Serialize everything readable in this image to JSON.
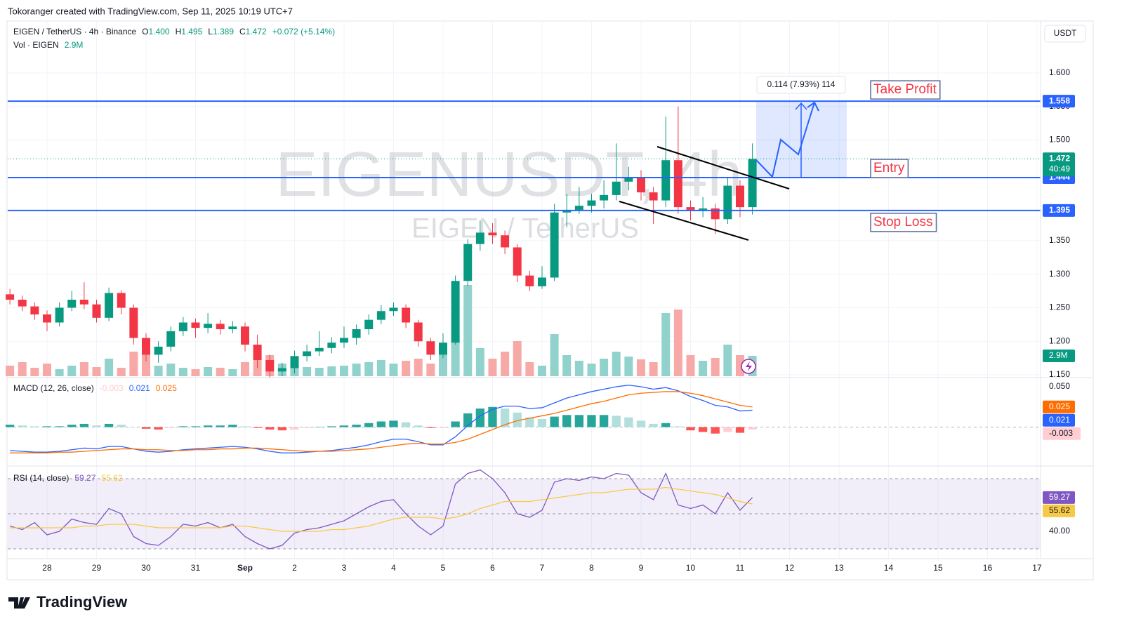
{
  "header": {
    "credit": "Tokoranger created with TradingView.com, Sep 11, 2025 10:19 UTC+7",
    "currency_button": "USDT",
    "logo": "TradingView"
  },
  "chart_data": [
    {
      "type": "candlestick",
      "symbol": "EIGEN / TetherUS · 4h · Binance",
      "ohlc_legend": [
        {
          "label": "O",
          "value": "1.400"
        },
        {
          "label": "H",
          "value": "1.495"
        },
        {
          "label": "L",
          "value": "1.389"
        },
        {
          "label": "C",
          "value": "1.472"
        }
      ],
      "change": "+0.072 (+5.14%)",
      "volume_title": "Vol · EIGEN",
      "volume_label": "2.9M",
      "watermark": "EIGENUSDT, 4h",
      "watermark_sub": "EIGEN / TetherUS",
      "countdown": "40:49",
      "categories": [
        null,
        null,
        null,
        "28",
        null,
        null,
        null,
        "29",
        null,
        null,
        null,
        "30",
        null,
        null,
        null,
        "31",
        null,
        null,
        null,
        "Sep",
        null,
        null,
        null,
        "2",
        null,
        null,
        null,
        "3",
        null,
        null,
        null,
        "4",
        null,
        null,
        null,
        "5",
        null,
        null,
        null,
        "6",
        null,
        null,
        null,
        "7",
        null,
        null,
        null,
        "8",
        null,
        null,
        null,
        "9",
        null,
        null,
        null,
        "10",
        null,
        null,
        null,
        "11",
        null
      ],
      "future_xticks": [
        "12",
        "13",
        "14",
        "15",
        "16",
        "17"
      ],
      "open": [
        1.27,
        1.262,
        1.252,
        1.24,
        1.228,
        1.25,
        1.262,
        1.255,
        1.235,
        1.272,
        1.25,
        1.205,
        1.18,
        1.192,
        1.215,
        1.228,
        1.22,
        1.226,
        1.218,
        1.222,
        1.195,
        1.172,
        1.155,
        1.16,
        1.178,
        1.185,
        1.19,
        1.198,
        1.205,
        1.218,
        1.232,
        1.245,
        1.25,
        1.228,
        1.2,
        1.18,
        1.198,
        1.29,
        1.345,
        1.362,
        1.358,
        1.34,
        1.298,
        1.282,
        1.295,
        1.392,
        1.396,
        1.402,
        1.41,
        1.418,
        1.438,
        1.444,
        1.422,
        1.41,
        1.47,
        1.4,
        1.396,
        1.398,
        1.382,
        1.432,
        1.4
      ],
      "high": [
        1.278,
        1.268,
        1.258,
        1.246,
        1.258,
        1.275,
        1.288,
        1.262,
        1.28,
        1.276,
        1.255,
        1.212,
        1.2,
        1.222,
        1.236,
        1.234,
        1.242,
        1.232,
        1.23,
        1.228,
        1.21,
        1.18,
        1.168,
        1.186,
        1.195,
        1.215,
        1.206,
        1.222,
        1.225,
        1.24,
        1.254,
        1.258,
        1.255,
        1.232,
        1.205,
        1.212,
        1.298,
        1.352,
        1.38,
        1.376,
        1.365,
        1.345,
        1.305,
        1.312,
        1.405,
        1.42,
        1.43,
        1.42,
        1.44,
        1.495,
        1.46,
        1.455,
        1.43,
        1.535,
        1.55,
        1.41,
        1.415,
        1.405,
        1.445,
        1.44,
        1.495
      ],
      "low": [
        1.255,
        1.245,
        1.232,
        1.215,
        1.222,
        1.245,
        1.248,
        1.228,
        1.23,
        1.24,
        1.195,
        1.17,
        1.168,
        1.185,
        1.208,
        1.205,
        1.212,
        1.21,
        1.212,
        1.185,
        1.16,
        1.145,
        1.148,
        1.152,
        1.17,
        1.178,
        1.182,
        1.19,
        1.195,
        1.21,
        1.226,
        1.238,
        1.22,
        1.192,
        1.172,
        1.175,
        1.195,
        1.282,
        1.335,
        1.345,
        1.33,
        1.288,
        1.275,
        1.278,
        1.29,
        1.37,
        1.39,
        1.392,
        1.398,
        1.41,
        1.425,
        1.41,
        1.375,
        1.4,
        1.39,
        1.38,
        1.385,
        1.36,
        1.375,
        1.385,
        1.389
      ],
      "close": [
        1.262,
        1.252,
        1.24,
        1.228,
        1.25,
        1.262,
        1.255,
        1.235,
        1.272,
        1.25,
        1.205,
        1.18,
        1.192,
        1.215,
        1.228,
        1.22,
        1.226,
        1.218,
        1.222,
        1.195,
        1.172,
        1.155,
        1.16,
        1.178,
        1.185,
        1.19,
        1.198,
        1.205,
        1.218,
        1.232,
        1.245,
        1.25,
        1.228,
        1.2,
        1.18,
        1.198,
        1.29,
        1.345,
        1.362,
        1.358,
        1.34,
        1.298,
        1.282,
        1.295,
        1.392,
        1.396,
        1.402,
        1.41,
        1.418,
        1.438,
        1.444,
        1.422,
        1.41,
        1.47,
        1.4,
        1.396,
        1.398,
        1.382,
        1.432,
        1.4,
        1.472
      ],
      "volume": [
        1.5,
        2,
        1.2,
        1.8,
        1,
        1.5,
        2,
        1.3,
        2.5,
        1.2,
        3.5,
        4,
        1.5,
        1.8,
        1.2,
        1,
        1.3,
        1.2,
        1,
        2,
        2.5,
        3,
        1.8,
        1.6,
        1.3,
        1.2,
        1.4,
        1.5,
        1.8,
        2,
        2.3,
        1.8,
        2.2,
        2.5,
        1.8,
        3.2,
        6,
        13,
        4,
        2.5,
        3.5,
        5,
        2,
        1.5,
        6,
        3,
        2.2,
        1.8,
        2.5,
        3.5,
        2.8,
        2.4,
        2,
        9,
        9.5,
        3,
        2.2,
        2.6,
        4.5,
        3,
        2.9
      ],
      "up_color": "#089981",
      "down_color": "#f23645",
      "volume_up_color": "#92d2cc",
      "volume_down_color": "#f7a9a7",
      "ylim": [
        1.1469,
        1.6753
      ],
      "yticks": [
        {
          "value": 1.6,
          "label": "1.600"
        },
        {
          "value": 1.55,
          "label": "1.550"
        },
        {
          "value": 1.5,
          "label": "1.500"
        },
        {
          "value": 1.35,
          "label": "1.350"
        },
        {
          "value": 1.3,
          "label": "1.300"
        },
        {
          "value": 1.25,
          "label": "1.250"
        },
        {
          "value": 1.2,
          "label": "1.200"
        },
        {
          "value": 1.15,
          "label": "1.150"
        }
      ],
      "grid": true,
      "levels": [
        {
          "name": "Take Profit",
          "value": 1.558
        },
        {
          "name": "Entry",
          "value": 1.444
        },
        {
          "name": "Stop Loss",
          "value": 1.395
        }
      ],
      "level_color": "#2962ff",
      "measure_label": "0.114 (7.93%) 114"
    },
    {
      "type": "macd",
      "title": "MACD (12, 26, close)",
      "series": [
        {
          "name": "Histogram",
          "colors": [
            "#26a69a",
            "#b2dfdb",
            "#ff5252",
            "#ffcdd2"
          ],
          "values": [
            0.003,
            0.002,
            0.001,
            0.001,
            0.001,
            0.003,
            0.004,
            0.002,
            0.004,
            0.003,
            0.0,
            -0.002,
            -0.003,
            -0.001,
            0.001,
            0.001,
            0.002,
            0.002,
            0.003,
            0.001,
            -0.001,
            -0.003,
            -0.004,
            -0.003,
            -0.001,
            0.0,
            0.001,
            0.002,
            0.003,
            0.005,
            0.007,
            0.008,
            0.006,
            0.002,
            -0.001,
            -0.001,
            0.007,
            0.017,
            0.023,
            0.025,
            0.023,
            0.018,
            0.012,
            0.01,
            0.013,
            0.015,
            0.015,
            0.015,
            0.015,
            0.014,
            0.012,
            0.008,
            0.004,
            0.005,
            0.001,
            -0.004,
            -0.006,
            -0.008,
            -0.006,
            -0.007,
            -0.003
          ]
        },
        {
          "name": "MACD",
          "color": "#2962ff",
          "values": [
            -0.029,
            -0.03,
            -0.031,
            -0.031,
            -0.03,
            -0.028,
            -0.026,
            -0.027,
            -0.024,
            -0.024,
            -0.027,
            -0.03,
            -0.031,
            -0.03,
            -0.028,
            -0.027,
            -0.026,
            -0.025,
            -0.024,
            -0.025,
            -0.027,
            -0.03,
            -0.032,
            -0.032,
            -0.031,
            -0.03,
            -0.029,
            -0.027,
            -0.025,
            -0.022,
            -0.018,
            -0.015,
            -0.015,
            -0.018,
            -0.022,
            -0.022,
            -0.012,
            0.002,
            0.014,
            0.022,
            0.026,
            0.026,
            0.023,
            0.024,
            0.03,
            0.036,
            0.04,
            0.044,
            0.047,
            0.05,
            0.052,
            0.05,
            0.047,
            0.049,
            0.045,
            0.038,
            0.033,
            0.027,
            0.025,
            0.02,
            0.021
          ]
        },
        {
          "name": "Signal",
          "color": "#ff6d00",
          "values": [
            -0.032,
            -0.032,
            -0.032,
            -0.032,
            -0.031,
            -0.031,
            -0.03,
            -0.029,
            -0.028,
            -0.027,
            -0.027,
            -0.028,
            -0.028,
            -0.029,
            -0.029,
            -0.028,
            -0.028,
            -0.027,
            -0.027,
            -0.026,
            -0.026,
            -0.027,
            -0.028,
            -0.029,
            -0.03,
            -0.03,
            -0.03,
            -0.029,
            -0.028,
            -0.027,
            -0.025,
            -0.023,
            -0.021,
            -0.02,
            -0.021,
            -0.021,
            -0.019,
            -0.015,
            -0.009,
            -0.003,
            0.003,
            0.008,
            0.011,
            0.014,
            0.017,
            0.021,
            0.025,
            0.029,
            0.032,
            0.036,
            0.04,
            0.042,
            0.043,
            0.044,
            0.044,
            0.042,
            0.039,
            0.035,
            0.031,
            0.027,
            0.025
          ]
        }
      ],
      "ylim": [
        -0.0465,
        0.0596
      ],
      "yticks": [
        {
          "value": 0.05,
          "label": "0.050"
        }
      ]
    },
    {
      "type": "rsi",
      "title": "RSI (14, close)",
      "series": [
        {
          "name": "RSI",
          "color": "#7e57c2",
          "values": [
            43,
            41,
            45,
            38,
            40,
            47,
            45,
            44,
            53,
            50,
            37,
            33,
            32,
            37,
            44,
            43,
            45,
            42,
            44,
            37,
            33,
            30,
            32,
            39,
            41,
            42,
            44,
            46,
            50,
            54,
            57,
            58,
            50,
            43,
            38,
            43,
            67,
            73,
            75,
            70,
            62,
            50,
            48,
            52,
            68,
            70,
            69,
            71,
            70,
            73,
            72,
            62,
            58,
            73,
            55,
            53,
            55,
            50,
            62,
            52,
            59.27
          ]
        },
        {
          "name": "RSI-based MA",
          "color": "#f7c948",
          "values": [
            42,
            42,
            42,
            42,
            42,
            42,
            43,
            43,
            44,
            44,
            44,
            43,
            42,
            42,
            42,
            42,
            42,
            42,
            43,
            43,
            42,
            41,
            40,
            40,
            40,
            40,
            41,
            41,
            42,
            43,
            45,
            47,
            48,
            48,
            48,
            47,
            48,
            50,
            53,
            55,
            57,
            57,
            57,
            58,
            59,
            60,
            61,
            62,
            62,
            63,
            64,
            64,
            64,
            65,
            64,
            63,
            62,
            61,
            59,
            57,
            55.62
          ]
        }
      ],
      "band_levels": [
        70,
        50,
        30
      ],
      "ylim": [
        24.8,
        76.8
      ],
      "yticks": [
        {
          "value": 40,
          "label": "40.00"
        }
      ]
    }
  ]
}
